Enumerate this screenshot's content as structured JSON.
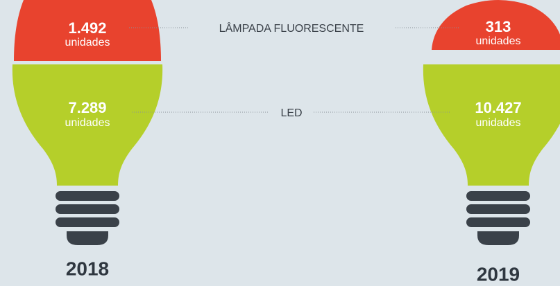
{
  "labels": {
    "fluorescent": "LÂMPADA FLUORESCENTE",
    "led": "LED"
  },
  "bulbs": [
    {
      "year": "2018",
      "fluorescent": {
        "value": "1.492",
        "unit": "unidades"
      },
      "led": {
        "value": "7.289",
        "unit": "unidades"
      }
    },
    {
      "year": "2019",
      "fluorescent": {
        "value": "313",
        "unit": "unidades"
      },
      "led": {
        "value": "10.427",
        "unit": "unidades"
      }
    }
  ]
}
